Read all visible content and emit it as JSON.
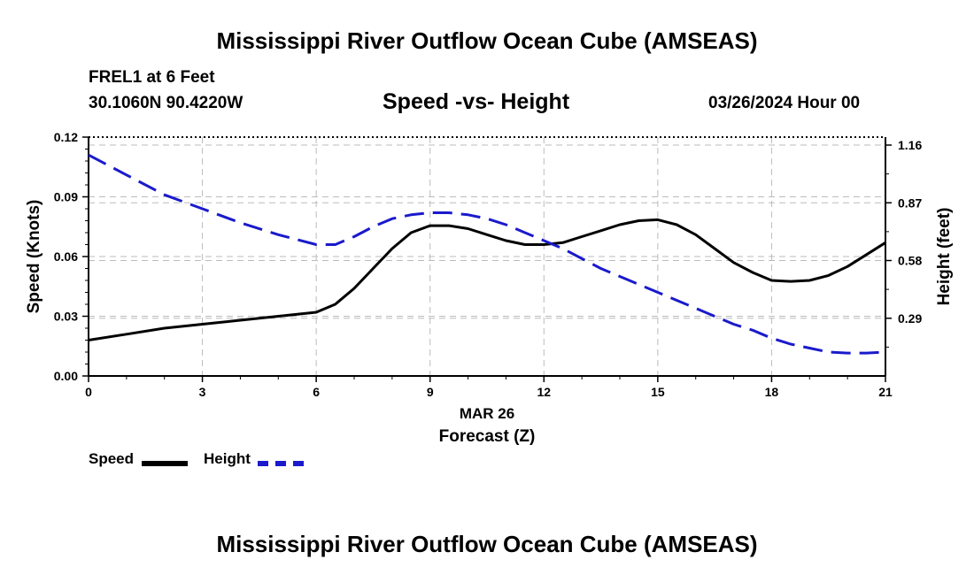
{
  "title": "Mississippi River Outflow Ocean Cube (AMSEAS)",
  "footer_title": "Mississippi River Outflow Ocean Cube (AMSEAS)",
  "station": "FREL1 at 6 Feet",
  "coordinates": "30.1060N  90.4220W",
  "subtitle": "Speed -vs- Height",
  "datestamp": "03/26/2024 Hour 00",
  "date_label": "MAR 26",
  "colors": {
    "speed": "#000000",
    "height": "#1a1acc",
    "grid": "#bbbbbb"
  },
  "legend": {
    "speed": "Speed",
    "height": "Height"
  },
  "chart_data": {
    "type": "line",
    "title": "Speed -vs- Height",
    "xlabel": "Forecast (Z)",
    "ylabel": "Speed (Knots)",
    "y2label": "Height (feet)",
    "xlim": [
      0,
      21
    ],
    "ylim": [
      0,
      0.12
    ],
    "y2lim": [
      0,
      1.2
    ],
    "xticks": [
      "0",
      "3",
      "6",
      "9",
      "12",
      "15",
      "18",
      "21"
    ],
    "yticks": [
      "0.00",
      "0.03",
      "0.06",
      "0.09",
      "0.12"
    ],
    "y2ticks": [
      "0.29",
      "0.58",
      "0.87",
      "1.16"
    ],
    "grid": true,
    "x": [
      0,
      1,
      2,
      3,
      4,
      5,
      6,
      6.5,
      7,
      7.5,
      8,
      8.5,
      9,
      9.5,
      10,
      10.5,
      11,
      11.5,
      12,
      12.5,
      13,
      13.5,
      14,
      14.5,
      15,
      15.5,
      16,
      16.5,
      17,
      17.5,
      18,
      18.5,
      19,
      19.5,
      20,
      20.5,
      21
    ],
    "series": [
      {
        "name": "Speed",
        "axis": "left",
        "values": [
          0.018,
          0.021,
          0.024,
          0.026,
          0.028,
          0.03,
          0.032,
          0.036,
          0.044,
          0.054,
          0.064,
          0.072,
          0.0755,
          0.0755,
          0.074,
          0.071,
          0.068,
          0.066,
          0.066,
          0.067,
          0.07,
          0.073,
          0.076,
          0.078,
          0.0785,
          0.076,
          0.071,
          0.064,
          0.057,
          0.052,
          0.048,
          0.0475,
          0.048,
          0.0505,
          0.055,
          0.061,
          0.067
        ]
      },
      {
        "name": "Height",
        "axis": "right",
        "values": [
          1.11,
          1.01,
          0.91,
          0.84,
          0.77,
          0.71,
          0.66,
          0.66,
          0.7,
          0.75,
          0.79,
          0.81,
          0.82,
          0.82,
          0.81,
          0.79,
          0.76,
          0.72,
          0.68,
          0.64,
          0.59,
          0.54,
          0.5,
          0.46,
          0.42,
          0.38,
          0.34,
          0.3,
          0.26,
          0.23,
          0.19,
          0.16,
          0.14,
          0.12,
          0.115,
          0.115,
          0.12
        ]
      }
    ]
  }
}
